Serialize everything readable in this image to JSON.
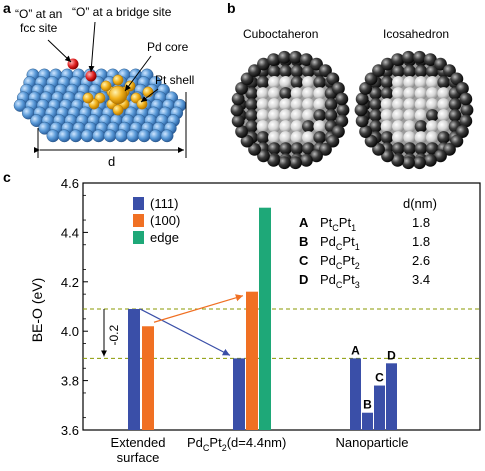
{
  "panels": {
    "a": {
      "letter": "a",
      "labels": {
        "o_fcc": "“O” at an\nfcc site",
        "o_bridge": "“O” at a bridge site",
        "pd_core": "Pd core",
        "pt_shell": "Pt shell",
        "d": "d"
      }
    },
    "b": {
      "letter": "b",
      "labels": {
        "cubo": "Cuboctaheron",
        "icosa": "Icosahedron"
      }
    },
    "c": {
      "letter": "c"
    }
  },
  "chart_data": {
    "type": "bar",
    "ylabel": "BE-O (eV)",
    "ylim": [
      3.6,
      4.6
    ],
    "yticks": [
      "3.6",
      "3.8",
      "4.0",
      "4.2",
      "4.4",
      "4.6"
    ],
    "categories": [
      "Extended\nsurface",
      "PdcPt2(d=4.4nm)",
      "Nanoparticle"
    ],
    "category_labels": [
      {
        "main": "Extended\nsurface"
      },
      {
        "main": "Pd",
        "sub1": "C",
        "main2": "Pt",
        "sub2": "2",
        "tail": "(d=4.4nm)"
      },
      {
        "main": "Nanoparticle"
      }
    ],
    "series": [
      {
        "name": "(111)",
        "color": "#3a4fa8",
        "values": [
          4.09,
          3.89,
          null
        ]
      },
      {
        "name": "(100)",
        "color": "#f07023",
        "values": [
          4.02,
          4.16,
          null
        ]
      },
      {
        "name": "edge",
        "color": "#1ea878",
        "values": [
          null,
          4.5,
          null
        ]
      }
    ],
    "nanoparticle_bars": [
      {
        "label": "A",
        "value": 3.89,
        "color": "#3a4fa8"
      },
      {
        "label": "B",
        "value": 3.67,
        "color": "#3a4fa8"
      },
      {
        "label": "C",
        "value": 3.78,
        "color": "#3a4fa8"
      },
      {
        "label": "D",
        "value": 3.87,
        "color": "#3a4fa8"
      }
    ],
    "reference_lines": [
      4.09,
      3.89
    ],
    "annotation_shift": "-0.2",
    "table_header": "d(nm)",
    "table": [
      {
        "key": "A",
        "a": "Pt",
        "as": "C",
        "b": "Pt",
        "bs": "1",
        "d": "1.8"
      },
      {
        "key": "B",
        "a": "Pd",
        "as": "C",
        "b": "Pt",
        "bs": "1",
        "d": "1.8"
      },
      {
        "key": "C",
        "a": "Pd",
        "as": "C",
        "b": "Pt",
        "bs": "2",
        "d": "2.6"
      },
      {
        "key": "D",
        "a": "Pd",
        "as": "C",
        "b": "Pt",
        "bs": "3",
        "d": "3.4"
      }
    ],
    "legend_position": "top-left",
    "grid": false
  }
}
